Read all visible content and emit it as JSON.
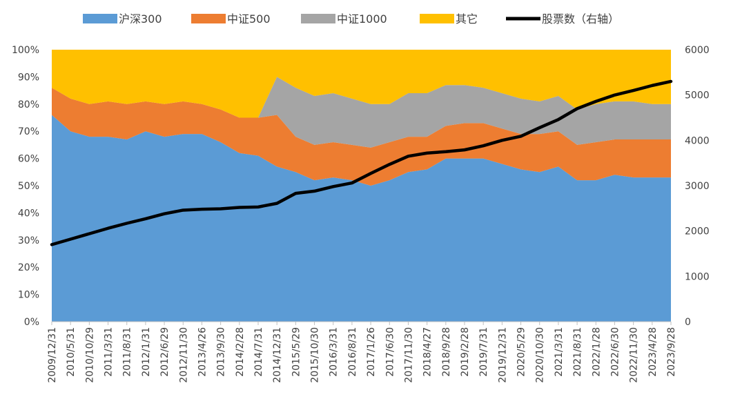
{
  "chart_data": {
    "type": "area",
    "stacked": true,
    "normalized": true,
    "title": "",
    "xlabel": "",
    "ylabel": "",
    "y2label": "",
    "ylim": [
      0,
      100
    ],
    "y2lim": [
      0,
      6000
    ],
    "yticks": [
      "0%",
      "10%",
      "20%",
      "30%",
      "40%",
      "50%",
      "60%",
      "70%",
      "80%",
      "90%",
      "100%"
    ],
    "y2ticks": [
      "0",
      "1000",
      "2000",
      "3000",
      "4000",
      "5000",
      "6000"
    ],
    "x_ticks": [
      "2009/12/31",
      "2010/5/31",
      "2010/10/29",
      "2011/3/31",
      "2011/8/31",
      "2012/1/31",
      "2012/6/29",
      "2012/11/30",
      "2013/4/26",
      "2013/9/30",
      "2014/2/28",
      "2014/7/31",
      "2014/12/31",
      "2015/5/29",
      "2015/10/30",
      "2016/3/31",
      "2016/8/31",
      "2017/1/26",
      "2017/6/30",
      "2017/11/30",
      "2018/4/27",
      "2018/9/28",
      "2019/2/28",
      "2019/7/31",
      "2019/12/31",
      "2020/5/29",
      "2020/10/30",
      "2021/3/31",
      "2021/8/31",
      "2022/1/28",
      "2022/6/30",
      "2022/11/30",
      "2023/4/28",
      "2023/9/28"
    ],
    "legend": {
      "position": "top",
      "items": [
        {
          "name": "沪深300",
          "type": "area",
          "color": "#5b9bd5"
        },
        {
          "name": "中证500",
          "type": "area",
          "color": "#ed7d31"
        },
        {
          "name": "中证1000",
          "type": "area",
          "color": "#a5a5a5"
        },
        {
          "name": "其它",
          "type": "area",
          "color": "#ffc000"
        },
        {
          "name": "股票数（右轴）",
          "type": "line",
          "color": "#000000"
        }
      ]
    },
    "series": [
      {
        "name": "沪深300",
        "axis": "left",
        "values": [
          76,
          70,
          68,
          68,
          67,
          70,
          68,
          69,
          69,
          66,
          62,
          61,
          57,
          55,
          52,
          53,
          52,
          50,
          52,
          55,
          56,
          60,
          60,
          60,
          58,
          56,
          55,
          57,
          52,
          52,
          54,
          53,
          53,
          53
        ]
      },
      {
        "name": "中证500",
        "axis": "left",
        "values": [
          10,
          12,
          12,
          13,
          13,
          11,
          12,
          12,
          11,
          12,
          13,
          14,
          19,
          13,
          13,
          13,
          13,
          14,
          14,
          13,
          12,
          12,
          13,
          13,
          13,
          13,
          14,
          13,
          13,
          14,
          13,
          14,
          14,
          14
        ]
      },
      {
        "name": "中证1000",
        "axis": "left",
        "values": [
          0,
          0,
          0,
          0,
          0,
          0,
          0,
          0,
          0,
          0,
          0,
          0,
          14,
          18,
          18,
          18,
          17,
          16,
          14,
          16,
          16,
          15,
          14,
          13,
          13,
          13,
          12,
          13,
          13,
          14,
          14,
          14,
          13,
          13
        ]
      },
      {
        "name": "其它",
        "axis": "left",
        "values": [
          14,
          18,
          20,
          19,
          20,
          19,
          20,
          19,
          20,
          22,
          25,
          25,
          10,
          14,
          17,
          16,
          18,
          20,
          20,
          16,
          16,
          13,
          13,
          14,
          16,
          18,
          19,
          17,
          22,
          20,
          19,
          19,
          20,
          20
        ]
      },
      {
        "name": "股票数（右轴）",
        "axis": "right",
        "values": [
          1700,
          1820,
          1940,
          2060,
          2170,
          2270,
          2380,
          2460,
          2480,
          2490,
          2520,
          2530,
          2610,
          2830,
          2880,
          2980,
          3060,
          3270,
          3470,
          3650,
          3720,
          3750,
          3790,
          3880,
          4000,
          4090,
          4280,
          4460,
          4700,
          4860,
          5000,
          5100,
          5210,
          5300
        ]
      }
    ]
  }
}
